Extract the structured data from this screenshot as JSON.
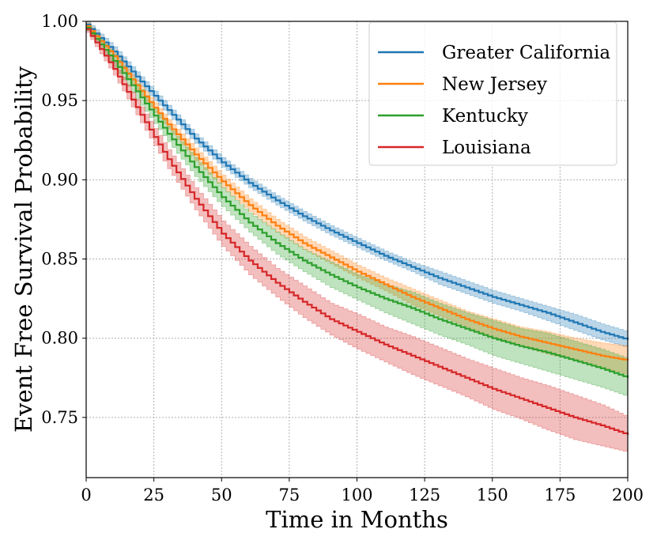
{
  "chart_data": {
    "type": "line",
    "xlabel": "Time in Months",
    "ylabel": "Event Free Survival Probability",
    "xlim": [
      0,
      200
    ],
    "ylim": [
      0.712,
      1.0
    ],
    "x_ticks": [
      "0",
      "25",
      "50",
      "75",
      "100",
      "125",
      "150",
      "175",
      "200"
    ],
    "y_ticks": [
      "0.75",
      "0.80",
      "0.85",
      "0.90",
      "0.95",
      "1.00"
    ],
    "grid": true,
    "legend_position": "top-right",
    "x": [
      0,
      10,
      20,
      30,
      40,
      50,
      60,
      70,
      80,
      90,
      100,
      110,
      120,
      130,
      140,
      150,
      160,
      170,
      180,
      190,
      200
    ],
    "series": [
      {
        "name": "Greater California",
        "color": "#1f77b4",
        "values": [
          0.998,
          0.981,
          0.962,
          0.944,
          0.926,
          0.911,
          0.898,
          0.887,
          0.877,
          0.868,
          0.86,
          0.852,
          0.845,
          0.838,
          0.832,
          0.826,
          0.821,
          0.816,
          0.81,
          0.804,
          0.799
        ],
        "ci_lower": [
          0.996,
          0.978,
          0.959,
          0.941,
          0.923,
          0.908,
          0.895,
          0.884,
          0.874,
          0.865,
          0.857,
          0.849,
          0.842,
          0.834,
          0.828,
          0.822,
          0.817,
          0.811,
          0.805,
          0.799,
          0.794
        ],
        "ci_upper": [
          1.0,
          0.984,
          0.965,
          0.947,
          0.929,
          0.914,
          0.901,
          0.89,
          0.88,
          0.871,
          0.863,
          0.855,
          0.848,
          0.842,
          0.836,
          0.83,
          0.825,
          0.82,
          0.815,
          0.809,
          0.804
        ]
      },
      {
        "name": "New Jersey",
        "color": "#ff7f0e",
        "values": [
          0.997,
          0.978,
          0.956,
          0.935,
          0.916,
          0.899,
          0.884,
          0.871,
          0.86,
          0.851,
          0.842,
          0.834,
          0.826,
          0.819,
          0.812,
          0.806,
          0.801,
          0.797,
          0.793,
          0.789,
          0.786
        ],
        "ci_lower": [
          0.995,
          0.975,
          0.953,
          0.932,
          0.912,
          0.895,
          0.88,
          0.867,
          0.856,
          0.847,
          0.838,
          0.83,
          0.821,
          0.814,
          0.807,
          0.8,
          0.795,
          0.79,
          0.786,
          0.781,
          0.777
        ],
        "ci_upper": [
          0.999,
          0.981,
          0.959,
          0.938,
          0.92,
          0.903,
          0.888,
          0.875,
          0.864,
          0.855,
          0.846,
          0.838,
          0.831,
          0.824,
          0.817,
          0.812,
          0.807,
          0.804,
          0.8,
          0.797,
          0.795
        ]
      },
      {
        "name": "Kentucky",
        "color": "#2ca02c",
        "values": [
          0.996,
          0.975,
          0.952,
          0.929,
          0.908,
          0.889,
          0.873,
          0.86,
          0.849,
          0.84,
          0.832,
          0.825,
          0.819,
          0.812,
          0.806,
          0.8,
          0.795,
          0.791,
          0.786,
          0.781,
          0.775
        ],
        "ci_lower": [
          0.994,
          0.971,
          0.947,
          0.924,
          0.902,
          0.883,
          0.867,
          0.853,
          0.842,
          0.832,
          0.824,
          0.816,
          0.809,
          0.802,
          0.796,
          0.789,
          0.784,
          0.779,
          0.774,
          0.769,
          0.763
        ],
        "ci_upper": [
          0.998,
          0.979,
          0.957,
          0.934,
          0.914,
          0.895,
          0.879,
          0.867,
          0.856,
          0.848,
          0.84,
          0.834,
          0.829,
          0.822,
          0.816,
          0.811,
          0.806,
          0.803,
          0.798,
          0.793,
          0.787
        ]
      },
      {
        "name": "Louisiana",
        "color": "#d62728",
        "values": [
          0.995,
          0.97,
          0.941,
          0.913,
          0.888,
          0.866,
          0.849,
          0.835,
          0.823,
          0.812,
          0.804,
          0.796,
          0.789,
          0.782,
          0.775,
          0.768,
          0.762,
          0.756,
          0.75,
          0.745,
          0.739
        ],
        "ci_lower": [
          0.993,
          0.966,
          0.936,
          0.907,
          0.881,
          0.858,
          0.84,
          0.826,
          0.813,
          0.802,
          0.793,
          0.785,
          0.777,
          0.77,
          0.763,
          0.755,
          0.749,
          0.742,
          0.736,
          0.732,
          0.728
        ],
        "ci_upper": [
          0.997,
          0.974,
          0.946,
          0.919,
          0.895,
          0.874,
          0.858,
          0.844,
          0.833,
          0.822,
          0.815,
          0.807,
          0.801,
          0.794,
          0.787,
          0.781,
          0.775,
          0.77,
          0.764,
          0.758,
          0.75
        ]
      }
    ]
  }
}
